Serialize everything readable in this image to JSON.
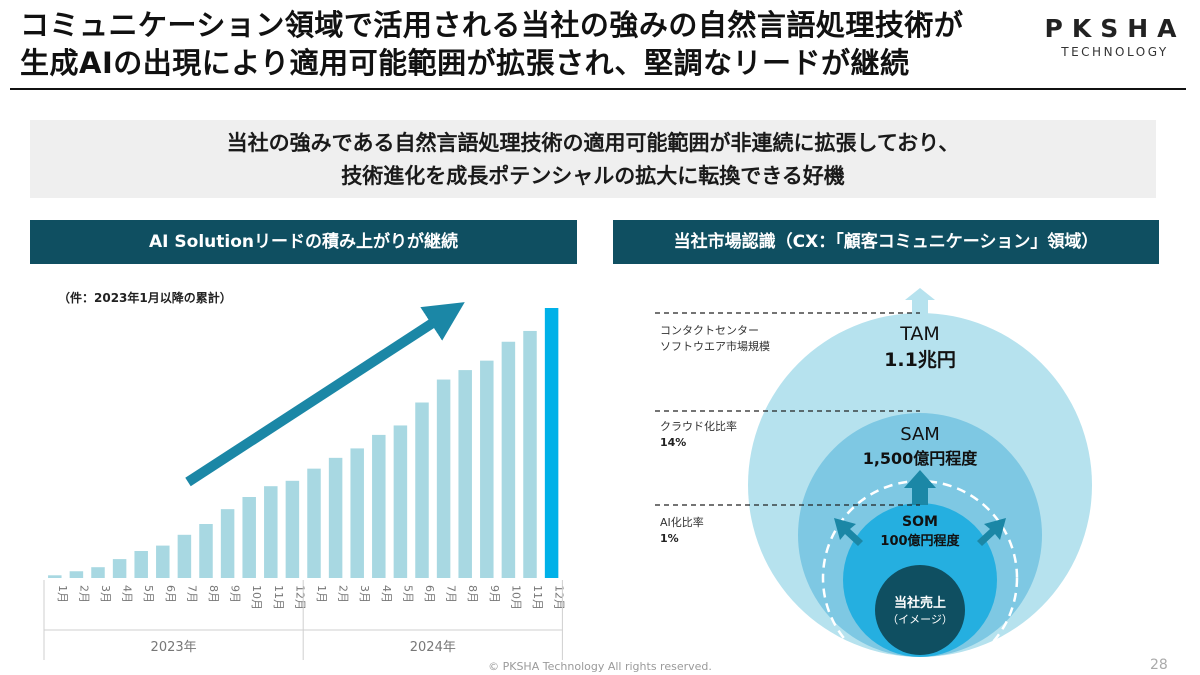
{
  "header": {
    "title_line1": "コミュニケーション領域で活用される当社の強みの自然言語処理技術が",
    "title_line2": "生成AIの出現により適用可能範囲が拡張され、堅調なリードが継続",
    "logo_main": "PKSHA",
    "logo_sub": "TECHNOLOGY"
  },
  "banner": {
    "line1": "当社の強みである自然言語処理技術の適用可能範囲が非連続に拡張しており、",
    "line2": "技術進化を成長ポテンシャルの拡大に転換できる好機"
  },
  "left_panel": {
    "heading": "AI Solutionリードの積み上がりが継続",
    "note": "（件：2023年1月以降の累計）"
  },
  "right_panel": {
    "heading": "当社市場認識（CX：「顧客コミュニケーション」領域）",
    "markers": [
      {
        "line1": "コンタクトセンター",
        "line2": "ソフトウエア市場規模",
        "value": ""
      },
      {
        "line1": "クラウド化比率",
        "line2": "",
        "value": "14%"
      },
      {
        "line1": "AI化比率",
        "line2": "",
        "value": "1%"
      }
    ],
    "tam": {
      "name": "TAM",
      "value": "1.1兆円"
    },
    "sam": {
      "name": "SAM",
      "value": "1,500億円程度"
    },
    "som": {
      "name": "SOM",
      "value": "100億円程度"
    },
    "core": {
      "line1": "当社売上",
      "line2": "（イメージ）"
    }
  },
  "chart_data": {
    "type": "bar",
    "title": "",
    "year_groups": [
      "2023年",
      "2024年"
    ],
    "categories": [
      "1月",
      "2月",
      "3月",
      "4月",
      "5月",
      "6月",
      "7月",
      "8月",
      "9月",
      "10月",
      "11月",
      "12月",
      "1月",
      "2月",
      "3月",
      "4月",
      "5月",
      "6月",
      "7月",
      "8月",
      "9月",
      "10月",
      "11月",
      "12月"
    ],
    "values": [
      1,
      2.5,
      4,
      7,
      10,
      12,
      16,
      20,
      25.5,
      30,
      34,
      36,
      40.5,
      44.5,
      48,
      53,
      56.5,
      65,
      73.5,
      77,
      80.5,
      87.5,
      91.5,
      100
    ],
    "value_unit": "relative index (axis unlabeled, 12月2024 = 100)",
    "ylim": [
      0,
      100
    ],
    "grid": false,
    "colors": {
      "bar": "#a8d8e2",
      "highlight": "#00b1e8",
      "arrow": "#1b87a6"
    }
  },
  "colors": {
    "heading_bg": "#0f4f61",
    "tam": "#b6e2ee",
    "sam": "#7ec8e3",
    "som": "#25afe0",
    "core": "#0f4f61",
    "arrow": "#1b87a6"
  },
  "footer": {
    "copyright": "© PKSHA Technology All rights reserved.",
    "page": "28"
  }
}
